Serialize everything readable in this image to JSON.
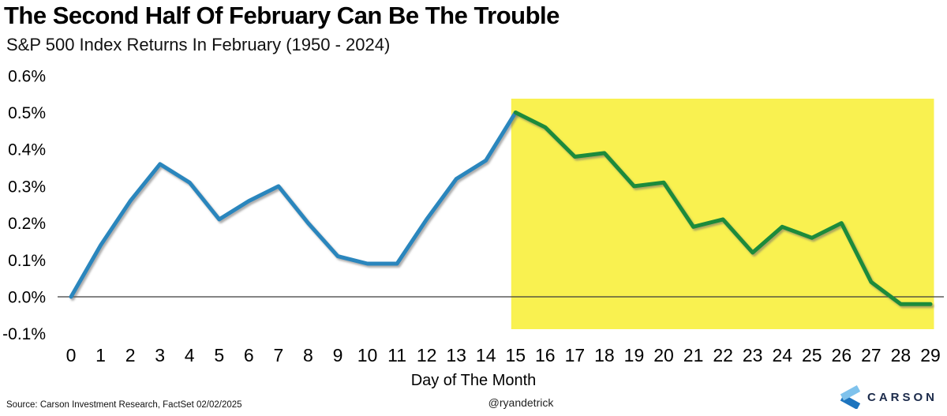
{
  "title": "The Second Half Of February Can Be The Trouble",
  "subtitle": "S&P 500 Index Returns In February (1950 - 2024)",
  "footer": {
    "source": "Source: Carson Investment Research, FactSet 02/02/2025",
    "handle": "@ryandetrick",
    "logo_text": "CARSON"
  },
  "colors": {
    "line_first_half": "#2C86BD",
    "line_second_half": "#1C8B3B",
    "highlight_yellow": "#F9F150",
    "axis_line": "#3a3a3a",
    "tick_text": "#000000",
    "logo_navy": "#1B2A4A",
    "logo_light_blue": "#7FC2EC",
    "logo_dark_blue": "#1D74BE"
  },
  "chart_data": {
    "type": "line",
    "title": "The Second Half Of February Can Be The Trouble",
    "subtitle": "S&P 500 Index Returns In February (1950 - 2024)",
    "xlabel": "Day of The Month",
    "ylabel": "",
    "x": [
      0,
      1,
      2,
      3,
      4,
      5,
      6,
      7,
      8,
      9,
      10,
      11,
      12,
      13,
      14,
      15,
      16,
      17,
      18,
      19,
      20,
      21,
      22,
      23,
      24,
      25,
      26,
      27,
      28,
      29
    ],
    "series": [
      {
        "name": "S&P 500 Index average February return path",
        "values": [
          0.0,
          0.14,
          0.26,
          0.36,
          0.31,
          0.21,
          0.26,
          0.3,
          0.2,
          0.11,
          0.09,
          0.09,
          0.21,
          0.32,
          0.37,
          0.5,
          0.46,
          0.38,
          0.39,
          0.3,
          0.31,
          0.19,
          0.21,
          0.12,
          0.19,
          0.16,
          0.2,
          0.04,
          -0.02,
          -0.02
        ]
      }
    ],
    "yticks": [
      0.6,
      0.5,
      0.4,
      0.3,
      0.2,
      0.1,
      0.0,
      -0.1
    ],
    "ytick_suffix": "%",
    "ylim": [
      -0.1,
      0.6
    ],
    "xlim": [
      0,
      29
    ],
    "grid": false,
    "legend": false,
    "color_split_x": 15,
    "highlight_region": {
      "x_start": 15,
      "x_end": 29
    }
  }
}
